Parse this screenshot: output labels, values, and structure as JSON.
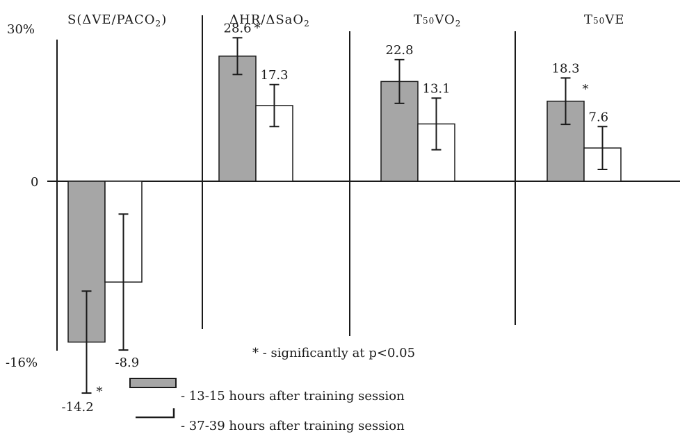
{
  "chart_data": {
    "type": "bar",
    "ylim": [
      -16,
      30
    ],
    "y_tick_labels": {
      "top": "30%",
      "zero": "0",
      "bottom": "-16%"
    },
    "panels": [
      {
        "title_parts": [
          [
            "S(ΔVE/PACO",
            ""
          ],
          [
            "2",
            "sub"
          ],
          [
            ")",
            ""
          ]
        ],
        "series": [
          {
            "value": -14.2,
            "label": "-14.2",
            "err": 4.5,
            "significant": true
          },
          {
            "value": -8.9,
            "label": "-8.9",
            "err": 6.0,
            "significant": false
          }
        ]
      },
      {
        "title_parts": [
          [
            "ΔHR/ΔSaO",
            ""
          ],
          [
            "2",
            "sub"
          ]
        ],
        "series": [
          {
            "value": 28.6,
            "label": "28.6",
            "err": 4.2,
            "significant": true
          },
          {
            "value": 17.3,
            "label": "17.3",
            "err": 4.8,
            "significant": false
          }
        ]
      },
      {
        "title_parts": [
          [
            "T",
            ""
          ],
          [
            "50",
            "small"
          ],
          [
            "VO",
            ""
          ],
          [
            "2",
            "sub"
          ]
        ],
        "series": [
          {
            "value": 22.8,
            "label": "22.8",
            "err": 5.0,
            "significant": false
          },
          {
            "value": 13.1,
            "label": "13.1",
            "err": 5.9,
            "significant": false
          }
        ]
      },
      {
        "title_parts": [
          [
            "T",
            ""
          ],
          [
            "50",
            "small"
          ],
          [
            "VE",
            ""
          ]
        ],
        "series": [
          {
            "value": 18.3,
            "label": "18.3",
            "err": 5.3,
            "significant": true
          },
          {
            "value": 7.6,
            "label": "7.6",
            "err": 4.9,
            "significant": false
          }
        ]
      }
    ],
    "note": "* - significantly at p<0.05",
    "legend": [
      {
        "label": "- 13-15 hours after training session",
        "color": "#a6a6a6"
      },
      {
        "label": "- 37-39 hours after training session",
        "color": "#ffffff"
      }
    ],
    "significance_marker": "*"
  }
}
